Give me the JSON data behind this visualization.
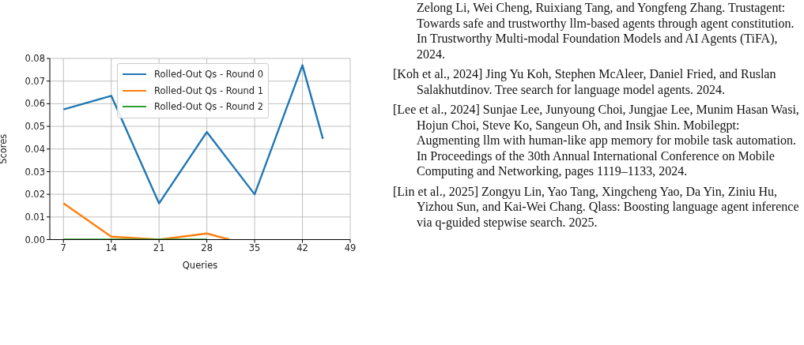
{
  "chart_data": {
    "type": "line",
    "xlabel": "Queries",
    "ylabel": "Scores",
    "x": [
      7,
      14,
      21,
      28,
      35,
      42,
      45
    ],
    "series": [
      {
        "name": "Rolled-Out Qs - Round 0",
        "color": "#1f77b4",
        "values": [
          0.0575,
          0.0635,
          0.016,
          0.0475,
          0.02,
          0.077,
          0.0445
        ]
      },
      {
        "name": "Rolled-Out Qs - Round 1",
        "color": "#ff7f0e",
        "x": [
          7,
          14,
          21,
          28,
          31.3
        ],
        "values": [
          0.016,
          0.0013,
          0.0,
          0.0027,
          0.0
        ]
      },
      {
        "name": "Rolled-Out Qs - Round 2",
        "color": "#2ca02c",
        "x": [
          7,
          14,
          21,
          28
        ],
        "values": [
          0.0,
          0.0,
          0.0,
          0.0
        ]
      }
    ],
    "xlim": [
      5,
      49
    ],
    "xticks": [
      7,
      14,
      21,
      28,
      35,
      42,
      49
    ],
    "ylim": [
      0,
      0.08
    ],
    "yticks": [
      {
        "value": 0,
        "label": "0.00"
      },
      {
        "value": 0.01,
        "label": "0.01"
      },
      {
        "value": 0.02,
        "label": "0.02"
      },
      {
        "value": 0.03,
        "label": "0.03"
      },
      {
        "value": 0.04,
        "label": "0.04"
      },
      {
        "value": 0.05,
        "label": "0.05"
      },
      {
        "value": 0.06,
        "label": "0.06"
      },
      {
        "value": 0.07,
        "label": "0.07"
      },
      {
        "value": 0.08,
        "label": "0.08"
      }
    ],
    "grid": true,
    "legend": "top right",
    "marker": "none",
    "line_style": "solid",
    "annotations": [
      "Zelong Li, Wei Cheng, Ruixiang Tang, and Yongfeng Zhang. Trustagent: Towards safe and trustworthy llm-based agents through agent constitution. In Trustworthy Multi-modal Foundation Models and AI Agents (TiFA), 2024.",
      "[Koh et al., 2024]  Jing Yu Koh, Stephen McAleer, Daniel Fried, and Ruslan Salakhutdinov. Tree search for language model agents. 2024.",
      "[Lee et al., 2024]  Sunjae Lee, Junyoung Choi, Jungjae Lee, Munim Hasan Wasi, Hojun Choi, Steve Ko, Sangeun Oh, and Insik Shin. Mobilegpt: Augmenting llm with human-like app memory for mobile task automation. In Proceedings of the 30th Annual International Conference on Mobile Computing and Networking, pages 1119–1133, 2024.",
      "[Lin et al., 2025]  Zongyu Lin, Yao Tang, Xingcheng Yao, Da Yin, Ziniu Hu, Yizhou Sun, and Kai-Wei Chang. Qlass: Boosting language agent inference via q-guided stepwise search. 2025."
    ]
  }
}
